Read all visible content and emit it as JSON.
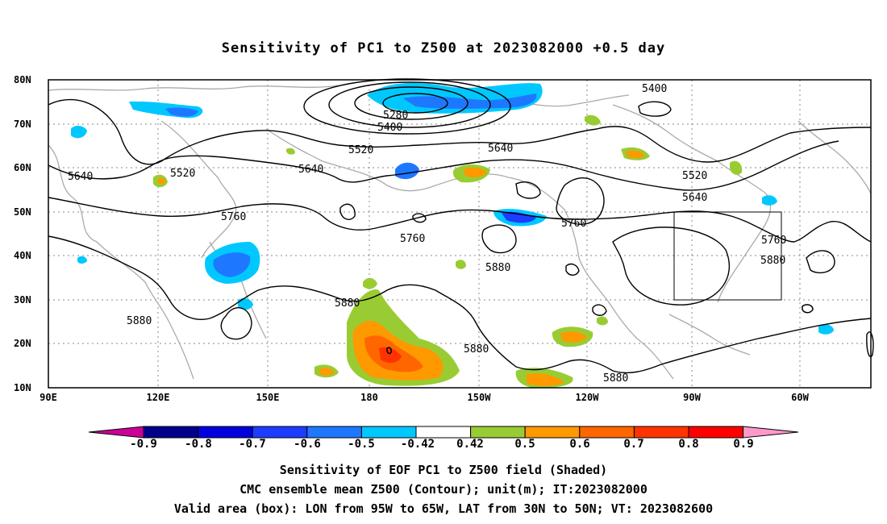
{
  "title": "Sensitivity of PC1 to Z500 at 2023082000 +0.5 day",
  "lat_labels": [
    "80N",
    "70N",
    "60N",
    "50N",
    "40N",
    "30N",
    "20N",
    "10N"
  ],
  "lon_labels": [
    "90E",
    "120E",
    "150E",
    "180",
    "150W",
    "120W",
    "90W",
    "60W"
  ],
  "contour_labels": [
    {
      "text": "5400"
    },
    {
      "text": "5280"
    },
    {
      "text": "5400"
    },
    {
      "text": "5520"
    },
    {
      "text": "5640"
    },
    {
      "text": "5640"
    },
    {
      "text": "5520"
    },
    {
      "text": "5640"
    },
    {
      "text": "5520"
    },
    {
      "text": "5640"
    },
    {
      "text": "5760"
    },
    {
      "text": "5760"
    },
    {
      "text": "5760"
    },
    {
      "text": "5760"
    },
    {
      "text": "5880"
    },
    {
      "text": "5880"
    },
    {
      "text": "5880"
    },
    {
      "text": "5880"
    },
    {
      "text": "5880"
    },
    {
      "text": "5880"
    }
  ],
  "colorbar": {
    "labels": [
      "-0.9",
      "-0.8",
      "-0.7",
      "-0.6",
      "-0.5",
      "-0.42",
      "0.42",
      "0.5",
      "0.6",
      "0.7",
      "0.8",
      "0.9"
    ],
    "colors": [
      "#00008b",
      "#0000dd",
      "#1e3cff",
      "#1e78ff",
      "#00c8ff",
      "#ffffff",
      "#99cc33",
      "#ff9900",
      "#ff6600",
      "#ff3300",
      "#ff0000"
    ],
    "low_color": "#cc0099",
    "high_color": "#ff99cc"
  },
  "footer": {
    "line1": "Sensitivity of EOF PC1 to Z500 field (Shaded)",
    "line2": "CMC ensemble mean Z500 (Contour); unit(m); IT:2023082000",
    "line3": "Valid area (box): LON from 95W to 65W, LAT from 30N to 50N; VT: 2023082600"
  },
  "colors": {
    "contour": "#000000",
    "coast": "#aaaaaa",
    "grid": "#888888"
  }
}
